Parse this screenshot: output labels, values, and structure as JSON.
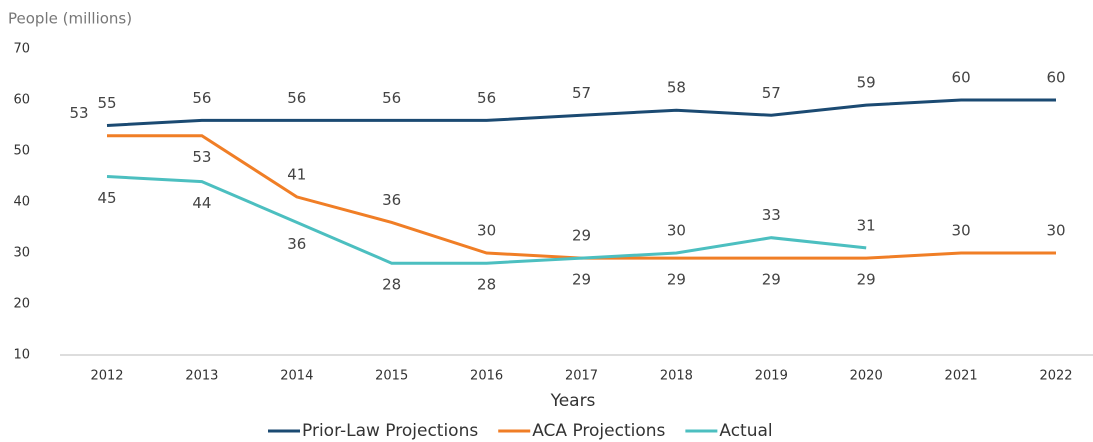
{
  "chart_data": {
    "type": "line",
    "y_axis_label": "People (millions)",
    "x_axis_label": "Years",
    "categories": [
      "2012",
      "2013",
      "2014",
      "2015",
      "2016",
      "2017",
      "2018",
      "2019",
      "2020",
      "2021",
      "2022"
    ],
    "series": [
      {
        "name": "Prior-Law Projections",
        "color": "#1b4a72",
        "values": [
          55,
          56,
          56,
          56,
          56,
          57,
          58,
          57,
          59,
          60,
          60
        ]
      },
      {
        "name": "ACA Projections",
        "color": "#f07e26",
        "values": [
          53,
          53,
          41,
          36,
          30,
          29,
          29,
          29,
          29,
          30,
          30
        ]
      },
      {
        "name": "Actual",
        "color": "#4cbfc0",
        "values": [
          45,
          44,
          36,
          28,
          28,
          29,
          30,
          33,
          31,
          null,
          null
        ]
      }
    ],
    "ylim": [
      10,
      70
    ],
    "yticks": [
      10,
      20,
      30,
      40,
      50,
      60,
      70
    ],
    "legend": "bottom"
  }
}
